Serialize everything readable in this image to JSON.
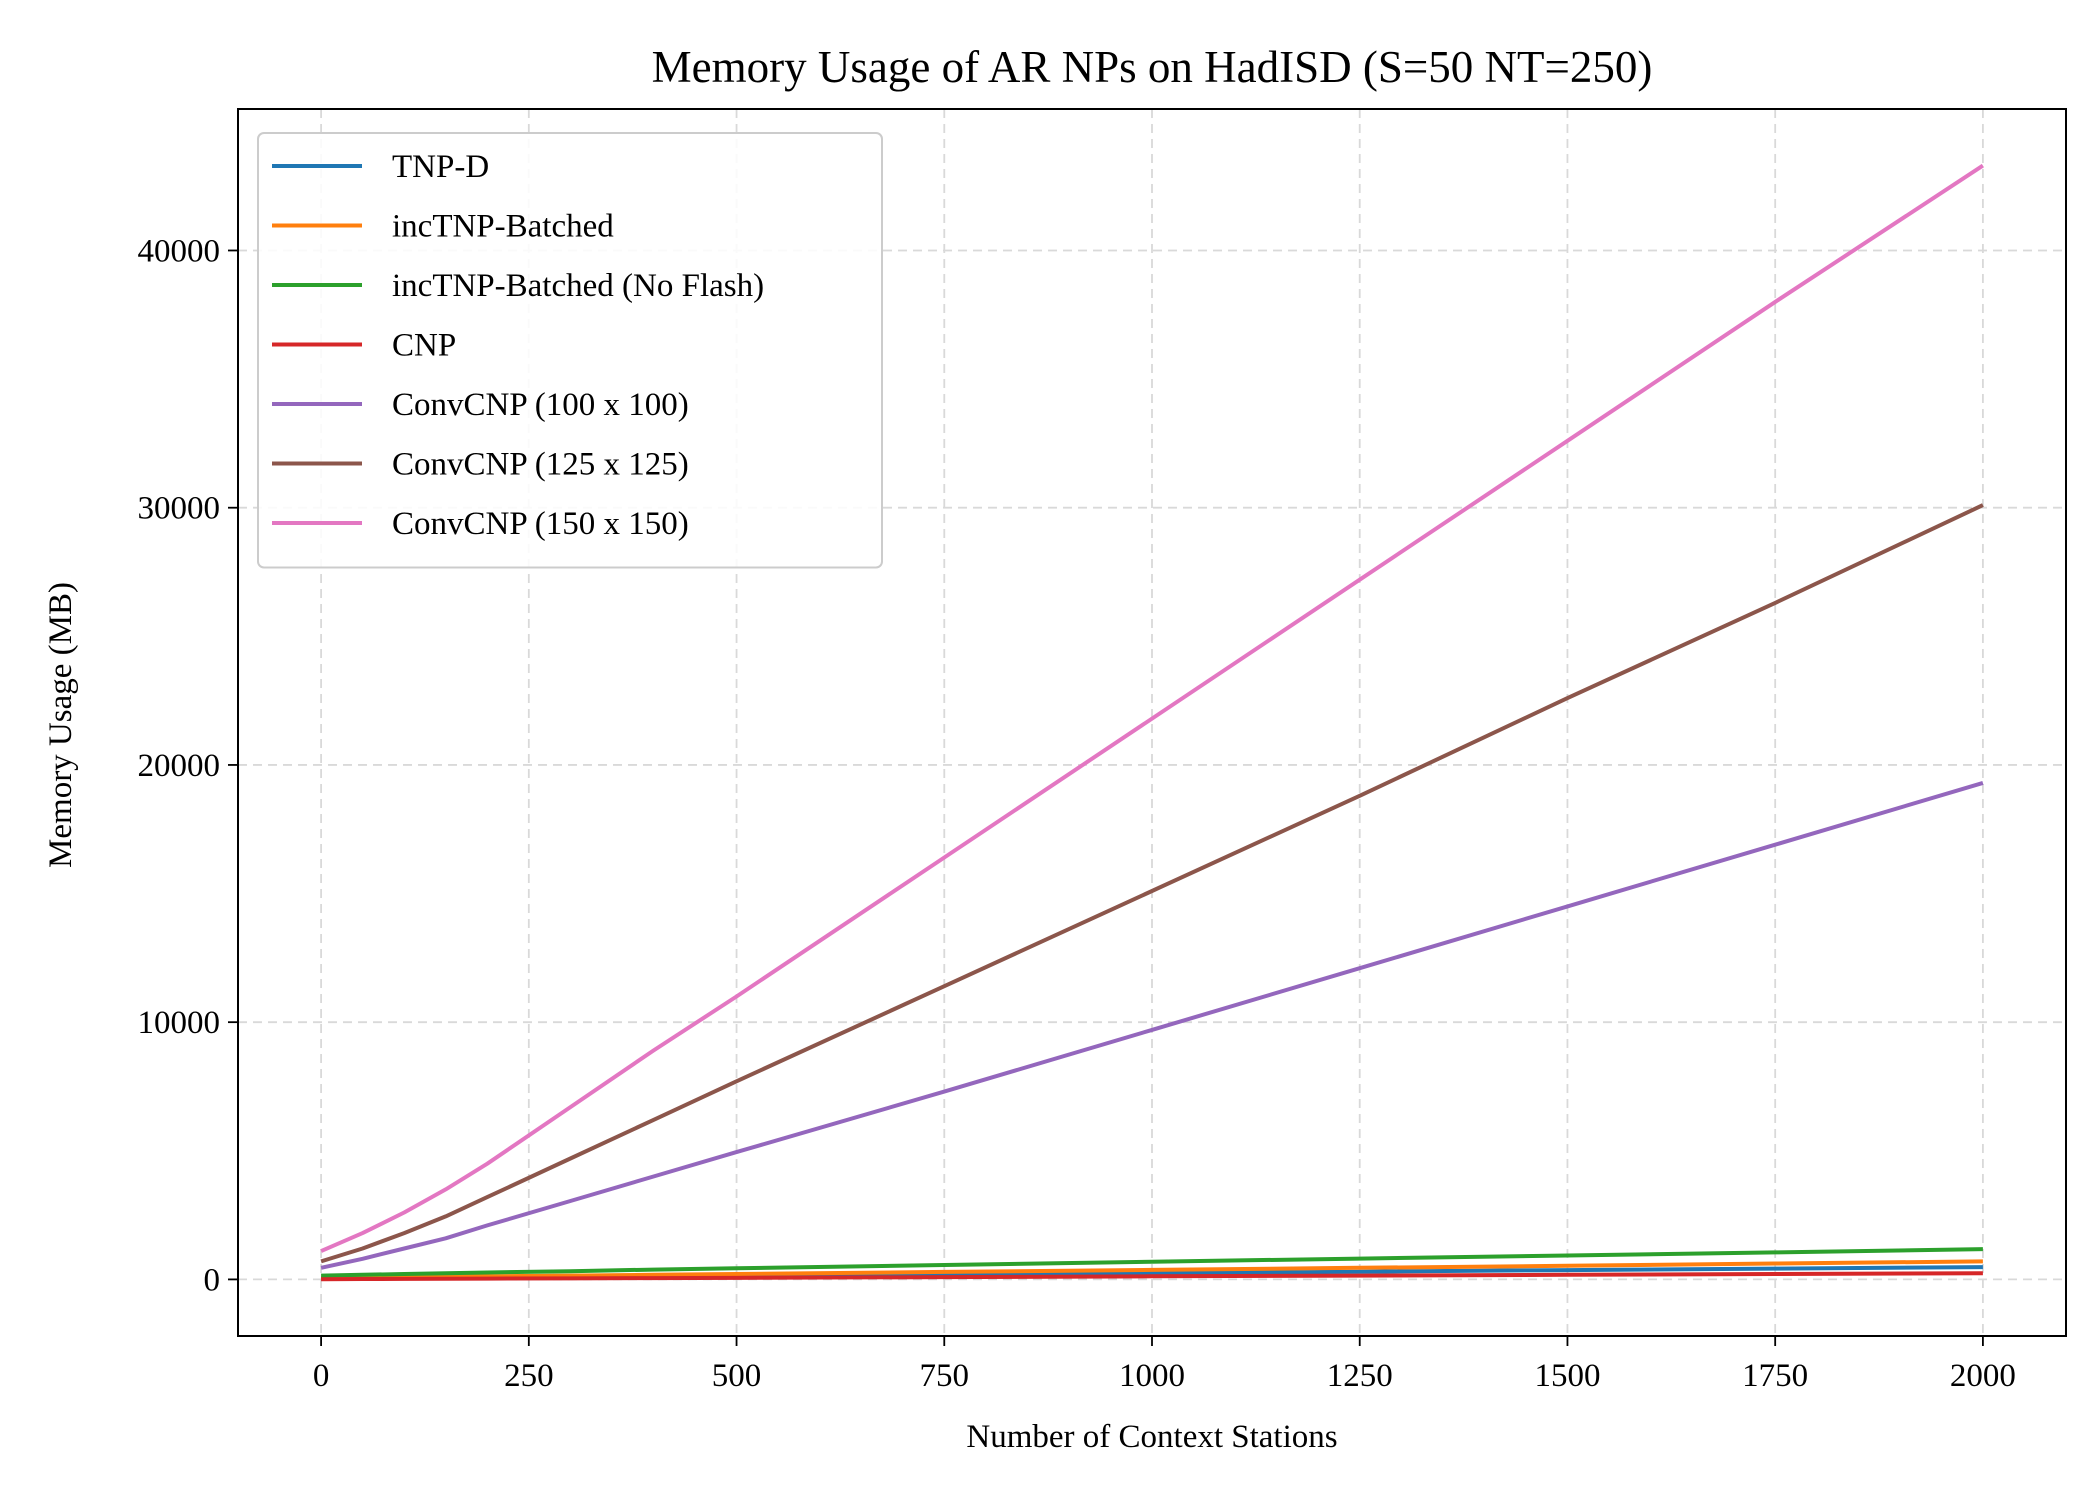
{
  "chart_data": {
    "type": "line",
    "title": "Memory Usage of AR NPs on HadISD (S=50 NT=250)",
    "xlabel": "Number of Context Stations",
    "ylabel": "Memory Usage (MB)",
    "xlim": [
      -100,
      2100
    ],
    "ylim": [
      -2200,
      45500
    ],
    "xticks": [
      0,
      250,
      500,
      750,
      1000,
      1250,
      1500,
      1750,
      2000
    ],
    "yticks": [
      0,
      10000,
      20000,
      30000,
      40000
    ],
    "grid": true,
    "legend_position": "top-left",
    "series": [
      {
        "name": "TNP-D",
        "color": "#1f77b4",
        "x": [
          0,
          50,
          100,
          150,
          200,
          300,
          400,
          500,
          750,
          1000,
          1250,
          1500,
          1750,
          2000
        ],
        "y": [
          30,
          40,
          50,
          60,
          70,
          90,
          110,
          130,
          180,
          240,
          300,
          360,
          420,
          480
        ]
      },
      {
        "name": "incTNP-Batched",
        "color": "#ff7f0e",
        "x": [
          0,
          50,
          100,
          150,
          200,
          300,
          400,
          500,
          750,
          1000,
          1250,
          1500,
          1750,
          2000
        ],
        "y": [
          60,
          75,
          90,
          105,
          120,
          150,
          180,
          210,
          290,
          370,
          450,
          530,
          620,
          700
        ]
      },
      {
        "name": "incTNP-Batched (No Flash)",
        "color": "#2ca02c",
        "x": [
          0,
          50,
          100,
          150,
          200,
          300,
          400,
          500,
          750,
          1000,
          1250,
          1500,
          1750,
          2000
        ],
        "y": [
          150,
          180,
          210,
          240,
          270,
          320,
          380,
          430,
          560,
          690,
          810,
          930,
          1050,
          1180
        ]
      },
      {
        "name": "CNP",
        "color": "#d62728",
        "x": [
          0,
          50,
          100,
          150,
          200,
          300,
          400,
          500,
          750,
          1000,
          1250,
          1500,
          1750,
          2000
        ],
        "y": [
          10,
          15,
          20,
          25,
          30,
          40,
          50,
          60,
          90,
          120,
          150,
          180,
          210,
          240
        ]
      },
      {
        "name": "ConvCNP (100 x 100)",
        "color": "#9467bd",
        "x": [
          0,
          50,
          100,
          150,
          200,
          300,
          400,
          500,
          750,
          1000,
          1250,
          1500,
          1750,
          2000
        ],
        "y": [
          450,
          800,
          1200,
          1600,
          2100,
          3050,
          4000,
          4950,
          7300,
          9700,
          12100,
          14500,
          16900,
          19300
        ]
      },
      {
        "name": "ConvCNP (125 x 125)",
        "color": "#8c564b",
        "x": [
          0,
          50,
          100,
          150,
          200,
          300,
          400,
          500,
          750,
          1000,
          1250,
          1500,
          1750,
          2000
        ],
        "y": [
          700,
          1200,
          1800,
          2450,
          3200,
          4700,
          6200,
          7700,
          11400,
          15100,
          18800,
          22600,
          26300,
          30100
        ]
      },
      {
        "name": "ConvCNP (150 x 150)",
        "color": "#e377c2",
        "x": [
          0,
          50,
          100,
          150,
          200,
          300,
          400,
          500,
          750,
          1000,
          1250,
          1500,
          1750,
          2000
        ],
        "y": [
          1100,
          1800,
          2600,
          3500,
          4500,
          6700,
          8900,
          11000,
          16400,
          21800,
          27200,
          32600,
          38000,
          43300
        ]
      }
    ]
  }
}
